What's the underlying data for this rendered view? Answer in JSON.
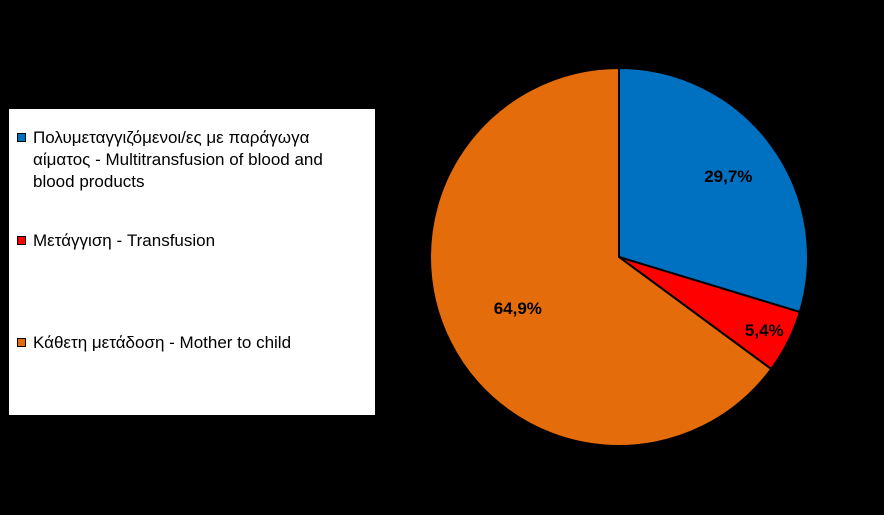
{
  "chart_data": {
    "type": "pie",
    "title": "",
    "series": [
      {
        "name": "Πολυμεταγγιζόμενοι/ες με παράγωγα αίματος -  Multitransfusion of blood and blood products",
        "value": 29.7,
        "label": "29,7%",
        "color": "#0070C0"
      },
      {
        "name": "Μετάγγιση - Transfusion",
        "value": 5.4,
        "label": "5,4%",
        "color": "#FF0000"
      },
      {
        "name": "Κάθετη μετάδοση - Mother to child",
        "value": 64.9,
        "label": "64,9%",
        "color": "#E46C0A"
      }
    ],
    "legend_position": "left"
  }
}
